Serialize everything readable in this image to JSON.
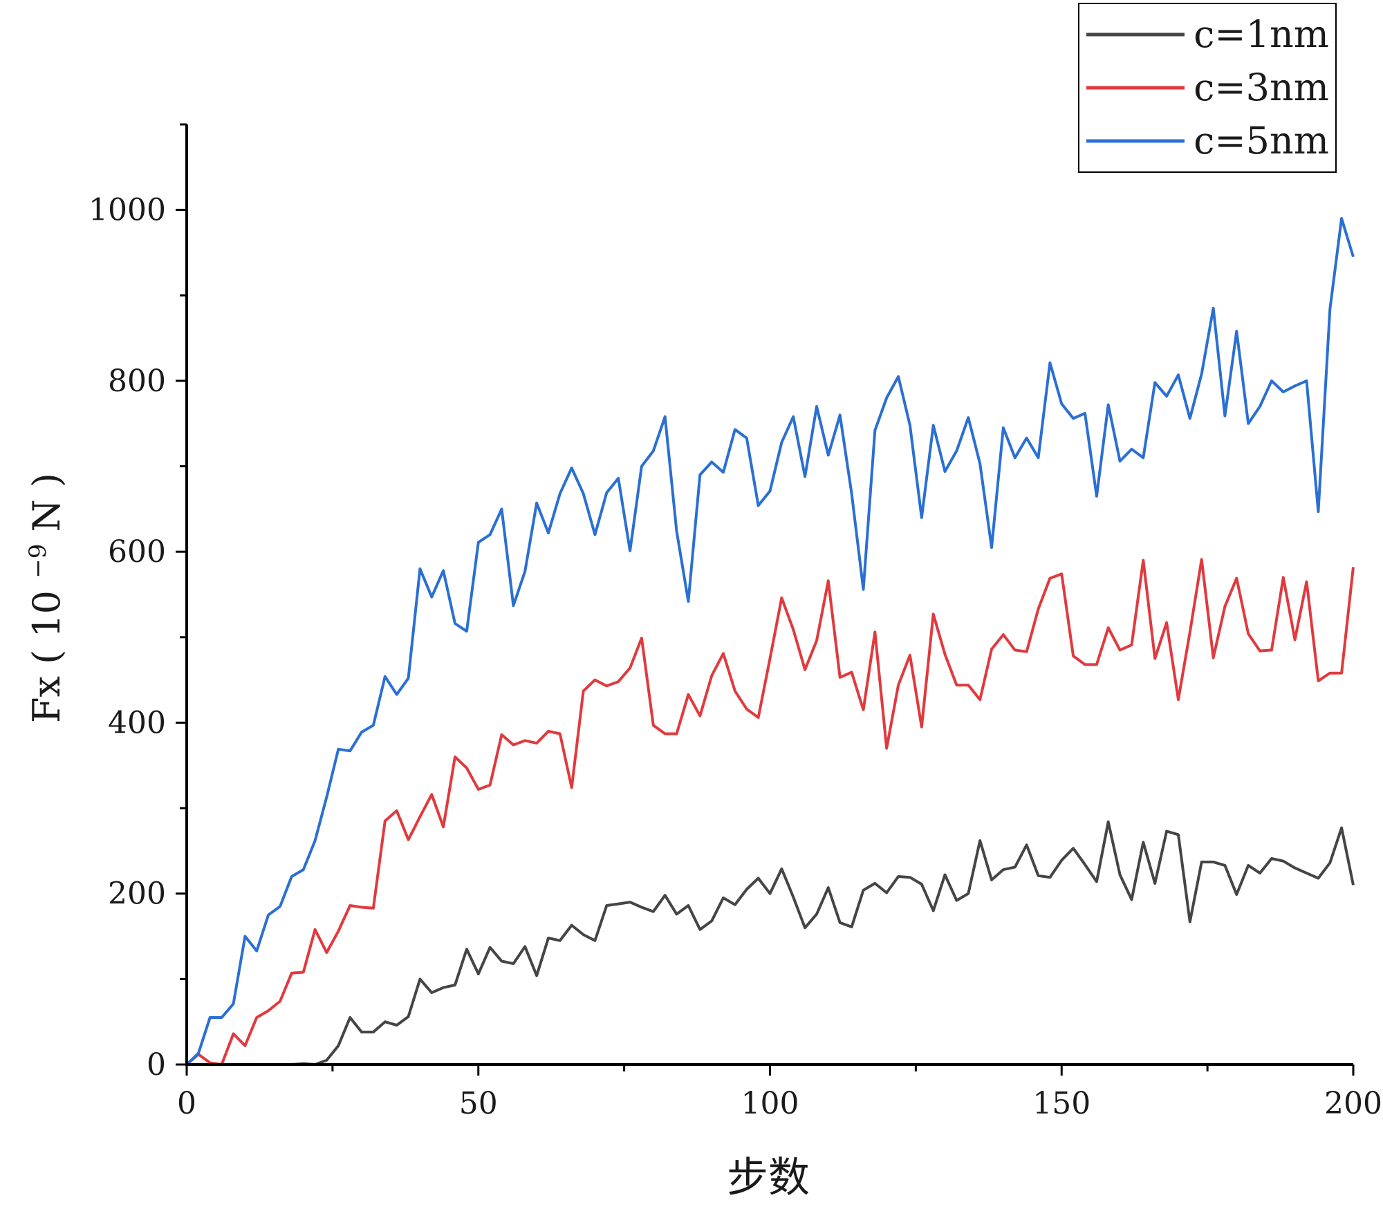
{
  "chart_data": {
    "type": "line",
    "title": "",
    "xlabel": "步数",
    "ylabel": {
      "main": "Fx",
      "open": "(",
      "base": "10",
      "exp": "−9",
      "unit": "N",
      "close": ")"
    },
    "xlim": [
      0,
      200
    ],
    "ylim": [
      0,
      1100
    ],
    "x_ticks": [
      0,
      50,
      100,
      150,
      200
    ],
    "y_ticks": [
      0,
      200,
      400,
      600,
      800,
      1000
    ],
    "x_minor_step": 25,
    "y_minor_step": 100,
    "grid": false,
    "legend_position": "top-right",
    "x": [
      0,
      2,
      4,
      6,
      8,
      10,
      12,
      14,
      16,
      18,
      20,
      22,
      24,
      26,
      28,
      30,
      32,
      34,
      36,
      38,
      40,
      42,
      44,
      46,
      48,
      50,
      52,
      54,
      56,
      58,
      60,
      62,
      64,
      66,
      68,
      70,
      72,
      74,
      76,
      78,
      80,
      82,
      84,
      86,
      88,
      90,
      92,
      94,
      96,
      98,
      100,
      102,
      104,
      106,
      108,
      110,
      112,
      114,
      116,
      118,
      120,
      122,
      124,
      126,
      128,
      130,
      132,
      134,
      136,
      138,
      140,
      142,
      144,
      146,
      148,
      150,
      152,
      154,
      156,
      158,
      160,
      162,
      164,
      166,
      168,
      170,
      172,
      174,
      176,
      178,
      180,
      182,
      184,
      186,
      188,
      190,
      192,
      194,
      196,
      198,
      200
    ],
    "series": [
      {
        "name": "c=1nm",
        "color": "#454545",
        "values": [
          0,
          0,
          0,
          0,
          0,
          0,
          0,
          0,
          0,
          0,
          1,
          0,
          5,
          22,
          55,
          38,
          38,
          50,
          46,
          56,
          100,
          84,
          90,
          93,
          135,
          106,
          137,
          121,
          118,
          138,
          104,
          148,
          145,
          163,
          152,
          145,
          186,
          188,
          190,
          184,
          179,
          198,
          176,
          186,
          158,
          168,
          195,
          187,
          205,
          218,
          200,
          229,
          196,
          160,
          176,
          207,
          166,
          161,
          204,
          212,
          201,
          220,
          219,
          211,
          180,
          222,
          192,
          200,
          262,
          216,
          228,
          231,
          257,
          221,
          219,
          239,
          253,
          234,
          214,
          284,
          222,
          193,
          260,
          212,
          273,
          269,
          167,
          237,
          237,
          233,
          199,
          233,
          224,
          241,
          238,
          230,
          224,
          218,
          236,
          277,
          210
        ]
      },
      {
        "name": "c=3nm",
        "color": "#e03a3e",
        "values": [
          0,
          12,
          2,
          0,
          36,
          22,
          55,
          63,
          74,
          107,
          108,
          158,
          131,
          156,
          186,
          184,
          183,
          285,
          297,
          263,
          290,
          316,
          278,
          360,
          347,
          322,
          327,
          386,
          374,
          379,
          376,
          390,
          387,
          324,
          437,
          450,
          443,
          448,
          464,
          499,
          397,
          387,
          387,
          433,
          408,
          455,
          481,
          437,
          416,
          406,
          475,
          546,
          509,
          462,
          496,
          566,
          453,
          459,
          415,
          506,
          370,
          444,
          479,
          395,
          527,
          480,
          444,
          444,
          427,
          486,
          503,
          485,
          483,
          533,
          569,
          574,
          478,
          468,
          468,
          511,
          485,
          491,
          590,
          475,
          517,
          427,
          506,
          591,
          476,
          536,
          569,
          504,
          484,
          485,
          570,
          497,
          565,
          449,
          458,
          458,
          582
        ]
      },
      {
        "name": "c=5nm",
        "color": "#2b6fd3",
        "values": [
          0,
          13,
          55,
          55,
          71,
          150,
          133,
          175,
          185,
          220,
          228,
          262,
          313,
          369,
          367,
          389,
          397,
          454,
          433,
          452,
          580,
          547,
          578,
          516,
          507,
          611,
          620,
          650,
          537,
          577,
          657,
          622,
          668,
          698,
          668,
          620,
          669,
          686,
          601,
          700,
          718,
          758,
          624,
          542,
          690,
          705,
          693,
          743,
          733,
          654,
          671,
          728,
          758,
          688,
          770,
          713,
          760,
          668,
          556,
          742,
          780,
          805,
          748,
          640,
          748,
          694,
          718,
          757,
          703,
          605,
          745,
          710,
          733,
          710,
          821,
          773,
          756,
          762,
          665,
          772,
          706,
          720,
          710,
          798,
          782,
          807,
          756,
          808,
          885,
          759,
          858,
          750,
          770,
          800,
          787,
          794,
          800,
          647,
          884,
          990,
          945
        ]
      }
    ]
  }
}
